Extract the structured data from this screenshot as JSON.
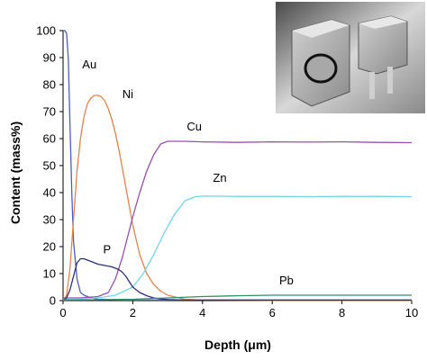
{
  "colors": {
    "Au": "#4a5fc1",
    "Ni": "#e8824a",
    "Cu": "#9a4fb0",
    "Zn": "#6fd6e6",
    "P": "#2a2f7a",
    "Pb": "#2f8f6a",
    "axis": "#000000",
    "photo_bg": "#3c3c3c"
  },
  "inset": {
    "description_icon": "photo-of-two-connector-pins"
  },
  "chart_data": {
    "type": "line",
    "title": "",
    "xlabel": "Depth (μm)",
    "ylabel": "Content (mass%)",
    "xlim": [
      0,
      10
    ],
    "ylim": [
      0,
      100
    ],
    "x_ticks": [
      "0",
      "2",
      "4",
      "6",
      "8",
      "10"
    ],
    "y_ticks": [
      "0",
      "10",
      "20",
      "30",
      "40",
      "50",
      "60",
      "70",
      "80",
      "90",
      "100"
    ],
    "grid": false,
    "legend": "inline labels",
    "series": [
      {
        "name": "Au",
        "label": "Au",
        "x": [
          0,
          0.05,
          0.1,
          0.15,
          0.2,
          0.25,
          0.3,
          0.4,
          0.5,
          0.6,
          0.8,
          1.0,
          1.5,
          2,
          3,
          4,
          6,
          8,
          10
        ],
        "y": [
          100,
          100,
          99,
          90,
          65,
          40,
          22,
          8,
          3,
          2,
          1,
          0.5,
          0.3,
          0.2,
          0.2,
          0.2,
          0.2,
          0.2,
          0.2
        ]
      },
      {
        "name": "Ni",
        "label": "Ni",
        "x": [
          0,
          0.1,
          0.2,
          0.3,
          0.4,
          0.5,
          0.6,
          0.7,
          0.8,
          0.9,
          1.0,
          1.1,
          1.2,
          1.3,
          1.4,
          1.5,
          1.6,
          1.7,
          1.8,
          1.9,
          2.0,
          2.2,
          2.4,
          2.6,
          2.8,
          3.0,
          3.5,
          4,
          6,
          8,
          10
        ],
        "y": [
          0,
          2,
          12,
          30,
          48,
          60,
          68,
          73,
          75,
          76,
          76,
          75.5,
          74,
          71,
          67,
          62,
          56,
          49,
          42,
          35,
          28,
          17,
          10,
          6,
          3.5,
          2,
          0.5,
          0.2,
          0.1,
          0.1,
          0.1
        ]
      },
      {
        "name": "Cu",
        "label": "Cu",
        "x": [
          0,
          0.5,
          1.0,
          1.3,
          1.5,
          1.7,
          1.9,
          2.0,
          2.2,
          2.4,
          2.6,
          2.8,
          3.0,
          3.2,
          3.5,
          4,
          5,
          6,
          7,
          8,
          9,
          10
        ],
        "y": [
          1,
          1,
          1.5,
          3,
          8,
          16,
          26,
          31,
          40,
          48,
          54,
          58,
          59,
          59,
          59,
          58.8,
          58.6,
          58.8,
          58.7,
          58.8,
          58.6,
          58.5
        ]
      },
      {
        "name": "Zn",
        "label": "Zn",
        "x": [
          0,
          0.5,
          1.0,
          1.5,
          2.0,
          2.3,
          2.6,
          2.9,
          3.2,
          3.5,
          3.8,
          4,
          5,
          6,
          7,
          8,
          9,
          10
        ],
        "y": [
          0.5,
          0.5,
          1,
          2,
          5,
          10,
          17,
          25,
          32,
          37,
          38.5,
          38.7,
          38.6,
          38.6,
          38.5,
          38.6,
          38.6,
          38.5
        ]
      },
      {
        "name": "P",
        "label": "P",
        "x": [
          0,
          0.1,
          0.2,
          0.3,
          0.4,
          0.5,
          0.6,
          0.7,
          0.8,
          1.0,
          1.2,
          1.4,
          1.5,
          1.6,
          1.7,
          1.8,
          1.9,
          2.0,
          2.2,
          2.4,
          2.6,
          2.8,
          3.0,
          3.5,
          4,
          6,
          8,
          10
        ],
        "y": [
          0,
          1,
          4,
          9,
          14,
          15.5,
          15.5,
          15,
          14.5,
          13.5,
          13,
          12.5,
          12,
          11.5,
          10.5,
          9,
          7,
          5,
          3,
          1.8,
          1,
          0.6,
          0.4,
          0.2,
          0.2,
          0.2,
          0.2,
          0.2
        ]
      },
      {
        "name": "Pb",
        "label": "Pb",
        "x": [
          0,
          1,
          2,
          3,
          4,
          5,
          6,
          7,
          8,
          9,
          10
        ],
        "y": [
          0.2,
          0.3,
          0.5,
          1,
          1.5,
          1.8,
          2,
          2,
          2,
          2,
          2
        ]
      }
    ],
    "label_positions": {
      "Au": [
        0.55,
        86
      ],
      "Ni": [
        1.7,
        75
      ],
      "Cu": [
        3.55,
        63
      ],
      "Zn": [
        4.3,
        44
      ],
      "P": [
        1.15,
        17.5
      ],
      "Pb": [
        6.2,
        6
      ]
    }
  }
}
